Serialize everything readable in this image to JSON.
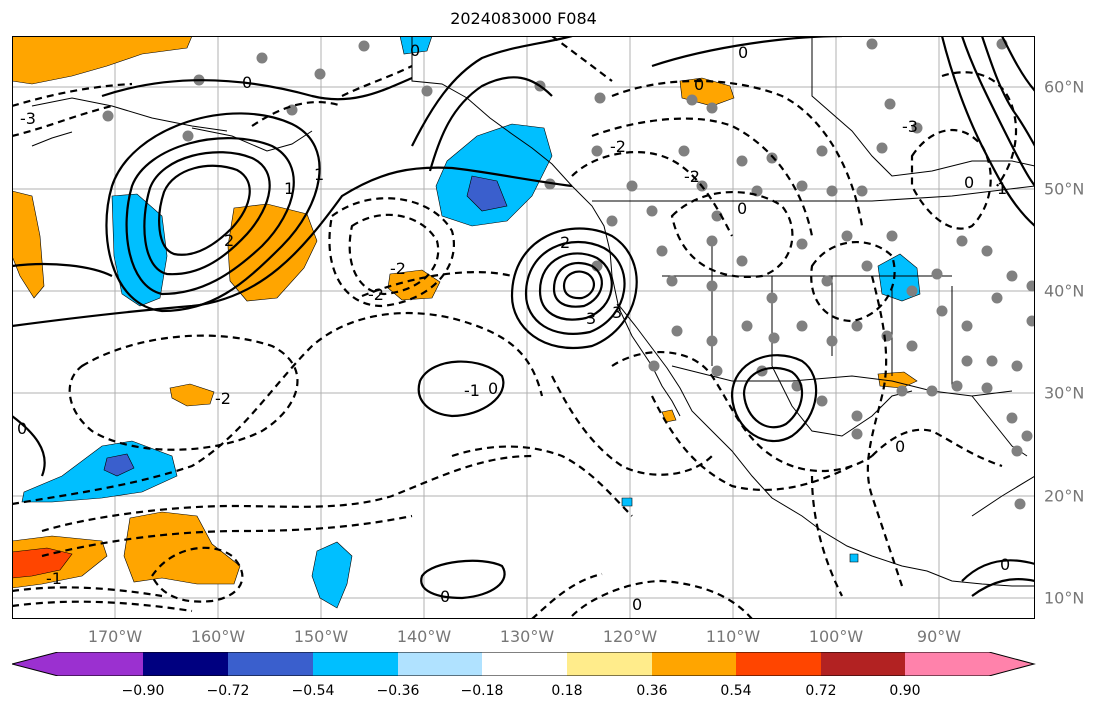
{
  "title": "2024083000 F084",
  "longitude_labels": [
    "170°W",
    "160°W",
    "150°W",
    "140°W",
    "130°W",
    "120°W",
    "110°W",
    "100°W",
    "90°W"
  ],
  "latitude_labels": [
    "60°N",
    "50°N",
    "40°N",
    "30°N",
    "20°N",
    "10°N"
  ],
  "colorbar": {
    "colors": [
      "#9b30d0",
      "#000080",
      "#3a5fcd",
      "#00bfff",
      "#b0e2ff",
      "#ffffff",
      "#ffec8b",
      "#ffa500",
      "#ff4500",
      "#b22222",
      "#ff82ab"
    ],
    "tick_labels": [
      "−0.90",
      "−0.72",
      "−0.54",
      "−0.36",
      "−0.18",
      "0.18",
      "0.36",
      "0.54",
      "0.72",
      "0.90"
    ]
  },
  "contour_labels": [
    "0",
    "1",
    "2",
    "3",
    "-1",
    "-2",
    "-3"
  ],
  "fill_colors": {
    "positive": "#ffa500",
    "strong_positive": "#ff4500",
    "negative": "#00bfff",
    "strong_negative": "#3a5fcd"
  },
  "marker_color": "#808080"
}
